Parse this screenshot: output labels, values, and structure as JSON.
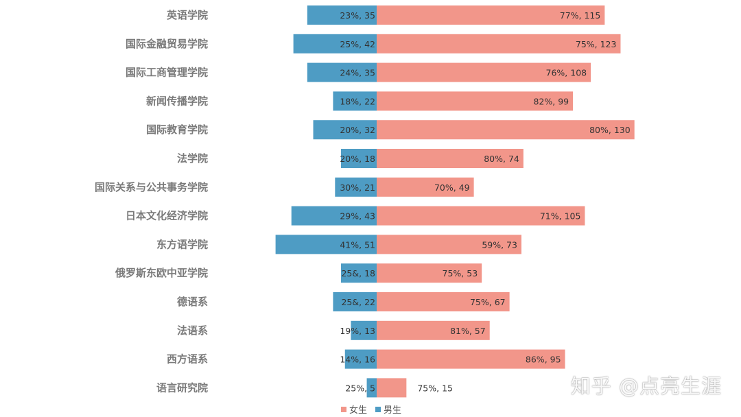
{
  "colors": {
    "female": "#f2968a",
    "male": "#4e9cc4"
  },
  "chart_data": {
    "type": "bar",
    "orientation": "horizontal-diverging",
    "categories": [
      "英语学院",
      "国际金融贸易学院",
      "国际工商管理学院",
      "新闻传播学院",
      "国际教育学院",
      "法学院",
      "国际关系与公共事务学院",
      "日本文化经济学院",
      "东方语学院",
      "俄罗斯东欧中亚学院",
      "德语系",
      "法语系",
      "西方语系",
      "语言研究院"
    ],
    "series": [
      {
        "name": "女生",
        "values": [
          115,
          123,
          108,
          99,
          130,
          74,
          49,
          105,
          73,
          53,
          67,
          57,
          95,
          15
        ],
        "labels": [
          "77%, 115",
          "75%, 123",
          "76%, 108",
          "82%, 99",
          "80%, 130",
          "80%, 74",
          "70%, 49",
          "71%, 105",
          "59%, 73",
          "75%, 53",
          "75%, 67",
          "81%, 57",
          "86%, 95",
          "75%, 15"
        ]
      },
      {
        "name": "男生",
        "values": [
          35,
          42,
          35,
          22,
          32,
          18,
          21,
          43,
          51,
          18,
          22,
          13,
          16,
          5
        ],
        "labels": [
          "23%, 35",
          "25%, 42",
          "24%, 35",
          "18%, 22",
          "20%, 32",
          "20%, 18",
          "30%, 21",
          "29%, 43",
          "41%, 51",
          "25&, 18",
          "25&, 22",
          "19%, 13",
          "14%, 16",
          "25%, 5"
        ]
      }
    ],
    "legend_position": "bottom",
    "grid": false
  },
  "watermark": "知乎 @点亮生涯"
}
